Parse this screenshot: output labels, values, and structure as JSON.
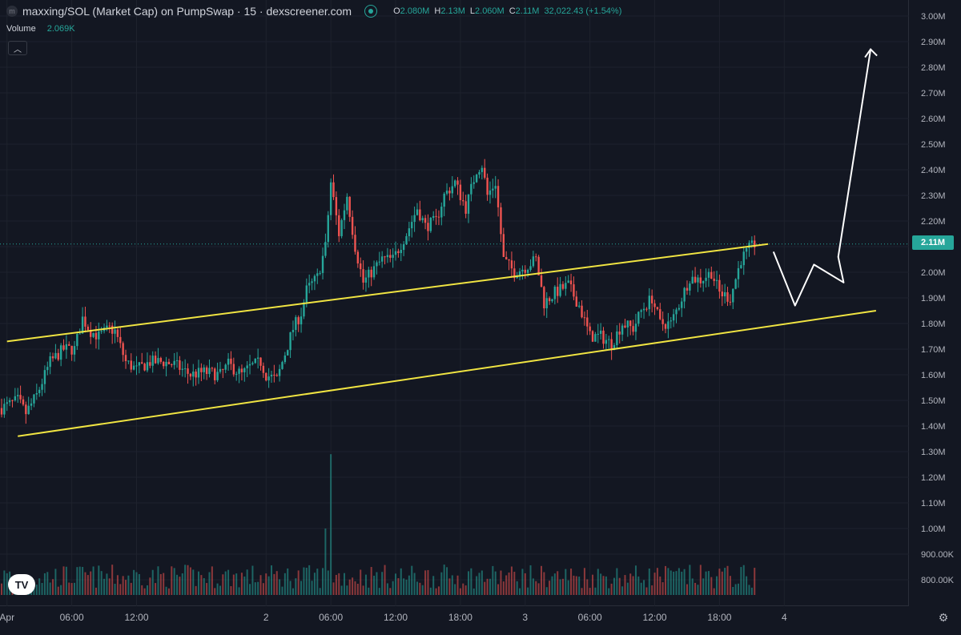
{
  "header": {
    "symbol_icon": "m",
    "title": "maxxing/SOL (Market Cap) on PumpSwap · 15 · dexscreener.com",
    "status_icon": "dot-icon",
    "ohlc": [
      {
        "k": "O",
        "v": "2.080M"
      },
      {
        "k": "H",
        "v": "2.13M"
      },
      {
        "k": "L",
        "v": "2.060M"
      },
      {
        "k": "C",
        "v": "2.11M"
      },
      {
        "k": "",
        "v": "32,022.43 (+1.54%)"
      }
    ]
  },
  "volume": {
    "label": "Volume",
    "value": "2.069K"
  },
  "collapse_icon": "chevron-up-icon",
  "current_price_label": "2.11M",
  "logo_text": "TV",
  "settings_icon": "gear-icon",
  "colors": {
    "up": "#26a69a",
    "down": "#ef5350",
    "channel": "#f0e442",
    "projection": "#ffffff",
    "grid": "#1e222d"
  },
  "chart_data": {
    "type": "candlestick",
    "y_axis_ticks": [
      "3.00M",
      "2.90M",
      "2.80M",
      "2.70M",
      "2.60M",
      "2.50M",
      "2.40M",
      "2.30M",
      "2.20M",
      "2.10M",
      "2.00M",
      "1.90M",
      "1.80M",
      "1.70M",
      "1.60M",
      "1.50M",
      "1.40M",
      "1.30M",
      "1.20M",
      "1.10M",
      "1.00M",
      "900.00K",
      "800.00K"
    ],
    "y_axis_values": [
      3.0,
      2.9,
      2.8,
      2.7,
      2.6,
      2.5,
      2.4,
      2.3,
      2.2,
      2.1,
      2.0,
      1.9,
      1.8,
      1.7,
      1.6,
      1.5,
      1.4,
      1.3,
      1.2,
      1.1,
      1.0,
      0.9,
      0.8
    ],
    "x_axis_ticks": [
      {
        "label": "Apr",
        "x": 2
      },
      {
        "label": "06:00",
        "x": 26
      },
      {
        "label": "12:00",
        "x": 50
      },
      {
        "label": "2",
        "x": 98
      },
      {
        "label": "06:00",
        "x": 122
      },
      {
        "label": "12:00",
        "x": 146
      },
      {
        "label": "18:00",
        "x": 170
      },
      {
        "label": "3",
        "x": 194
      },
      {
        "label": "06:00",
        "x": 218
      },
      {
        "label": "12:00",
        "x": 242
      },
      {
        "label": "18:00",
        "x": 266
      },
      {
        "label": "4",
        "x": 290
      }
    ],
    "x_unit": "15-minute bar index (x = 0 at the first visible bar)",
    "current_price": 2.11,
    "price_path": [
      [
        0,
        1.47
      ],
      [
        6,
        1.5
      ],
      [
        9,
        1.45
      ],
      [
        13,
        1.52
      ],
      [
        18,
        1.65
      ],
      [
        23,
        1.7
      ],
      [
        27,
        1.7
      ],
      [
        30,
        1.82
      ],
      [
        33,
        1.77
      ],
      [
        36,
        1.75
      ],
      [
        40,
        1.78
      ],
      [
        42,
        1.77
      ],
      [
        46,
        1.65
      ],
      [
        50,
        1.62
      ],
      [
        55,
        1.65
      ],
      [
        60,
        1.65
      ],
      [
        64,
        1.64
      ],
      [
        70,
        1.6
      ],
      [
        75,
        1.61
      ],
      [
        81,
        1.6
      ],
      [
        84,
        1.64
      ],
      [
        89,
        1.6
      ],
      [
        92,
        1.63
      ],
      [
        96,
        1.65
      ],
      [
        98,
        1.6
      ],
      [
        102,
        1.58
      ],
      [
        104,
        1.65
      ],
      [
        108,
        1.78
      ],
      [
        111,
        1.84
      ],
      [
        113,
        1.93
      ],
      [
        117,
        1.98
      ],
      [
        120,
        2.1
      ],
      [
        122,
        2.35
      ],
      [
        125,
        2.15
      ],
      [
        128,
        2.3
      ],
      [
        131,
        2.1
      ],
      [
        134,
        1.96
      ],
      [
        137,
        2.0
      ],
      [
        141,
        2.05
      ],
      [
        145,
        2.05
      ],
      [
        150,
        2.15
      ],
      [
        154,
        2.25
      ],
      [
        157,
        2.18
      ],
      [
        161,
        2.2
      ],
      [
        164,
        2.3
      ],
      [
        168,
        2.35
      ],
      [
        172,
        2.25
      ],
      [
        176,
        2.4
      ],
      [
        178,
        2.42
      ],
      [
        180,
        2.3
      ],
      [
        183,
        2.35
      ],
      [
        186,
        2.05
      ],
      [
        190,
        2.0
      ],
      [
        194,
        2.02
      ],
      [
        198,
        2.05
      ],
      [
        201,
        1.88
      ],
      [
        205,
        1.92
      ],
      [
        210,
        1.95
      ],
      [
        214,
        1.87
      ],
      [
        218,
        1.75
      ],
      [
        222,
        1.75
      ],
      [
        226,
        1.72
      ],
      [
        230,
        1.8
      ],
      [
        234,
        1.78
      ],
      [
        237,
        1.85
      ],
      [
        241,
        1.9
      ],
      [
        244,
        1.8
      ],
      [
        248,
        1.8
      ],
      [
        252,
        1.9
      ],
      [
        255,
        1.98
      ],
      [
        259,
        1.97
      ],
      [
        263,
        2.0
      ],
      [
        266,
        1.92
      ],
      [
        270,
        1.9
      ],
      [
        274,
        2.05
      ],
      [
        277,
        2.09
      ],
      [
        279,
        2.11
      ]
    ],
    "volume_spikes": [
      [
        122,
        1.29
      ],
      [
        120,
        1.0
      ]
    ],
    "annotations": {
      "upper_channel": [
        [
          2,
          1.73
        ],
        [
          284,
          2.11
        ]
      ],
      "lower_channel": [
        [
          6,
          1.36
        ],
        [
          324,
          1.85
        ]
      ],
      "projection_path": [
        [
          286,
          2.08
        ],
        [
          294,
          1.87
        ],
        [
          301,
          2.03
        ],
        [
          312,
          1.96
        ],
        [
          310,
          2.06
        ],
        [
          322,
          2.87
        ]
      ]
    }
  }
}
